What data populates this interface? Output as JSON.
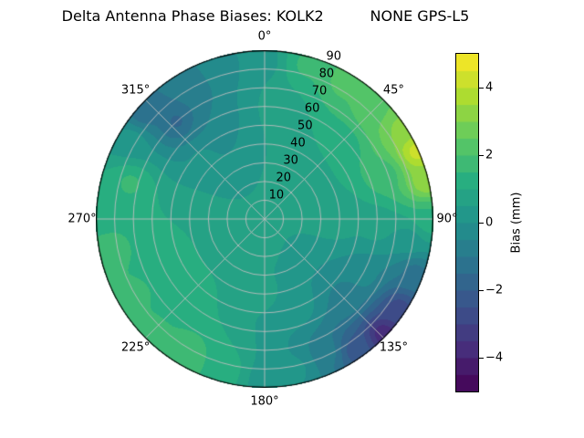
{
  "chart_data": {
    "type": "heatmap",
    "projection": "polar",
    "title": "Delta Antenna Phase Biases: KOLK2          NONE GPS-L5",
    "angular_ticks": [
      {
        "deg": 0,
        "label": "0°"
      },
      {
        "deg": 45,
        "label": "45°"
      },
      {
        "deg": 90,
        "label": "90°"
      },
      {
        "deg": 135,
        "label": "135°"
      },
      {
        "deg": 180,
        "label": "180°"
      },
      {
        "deg": 225,
        "label": "225°"
      },
      {
        "deg": 270,
        "label": "270°"
      },
      {
        "deg": 315,
        "label": "315°"
      }
    ],
    "radial_ticks": [
      {
        "value": 10,
        "label": "10"
      },
      {
        "value": 20,
        "label": "20"
      },
      {
        "value": 30,
        "label": "30"
      },
      {
        "value": 40,
        "label": "40"
      },
      {
        "value": 50,
        "label": "50"
      },
      {
        "value": 60,
        "label": "60"
      },
      {
        "value": 70,
        "label": "70"
      },
      {
        "value": 80,
        "label": "80"
      },
      {
        "value": 90,
        "label": "90"
      }
    ],
    "radial_max": 90,
    "radial_label_azimuth_deg": 22.5,
    "grid_color": "#bebebe",
    "colorbar": {
      "label": "Bias (mm)",
      "range": [
        -5,
        5
      ],
      "level_step": 0.5,
      "ticks": [
        {
          "value": -4,
          "label": "−4"
        },
        {
          "value": -2,
          "label": "−2"
        },
        {
          "value": 0,
          "label": "0"
        },
        {
          "value": 2,
          "label": "2"
        },
        {
          "value": 4,
          "label": "4"
        }
      ]
    },
    "colormap": {
      "name": "viridis",
      "stops": [
        "#440154",
        "#472d7b",
        "#3b528b",
        "#2c728e",
        "#21918c",
        "#28ae80",
        "#5ec962",
        "#addc30",
        "#fde725"
      ]
    },
    "samples": [
      {
        "az": 0,
        "zen": 84,
        "bias": 0.3
      },
      {
        "az": 10,
        "zen": 60,
        "bias": 0.8
      },
      {
        "az": 15,
        "zen": 85,
        "bias": 1.6
      },
      {
        "az": 30,
        "zen": 85,
        "bias": 2.2
      },
      {
        "az": 45,
        "zen": 83,
        "bias": 2.4
      },
      {
        "az": 57,
        "zen": 88,
        "bias": 3.2
      },
      {
        "az": 66,
        "zen": 89,
        "bias": 4.3
      },
      {
        "az": 77,
        "zen": 88,
        "bias": 3.4
      },
      {
        "az": 70,
        "zen": 68,
        "bias": 1.7
      },
      {
        "az": 45,
        "zen": 55,
        "bias": 1.0
      },
      {
        "az": 45,
        "zen": 25,
        "bias": 0.6
      },
      {
        "az": 90,
        "zen": 87,
        "bias": 1.4
      },
      {
        "az": 98,
        "zen": 78,
        "bias": 0.3
      },
      {
        "az": 95,
        "zen": 60,
        "bias": 0.6
      },
      {
        "az": 110,
        "zen": 85,
        "bias": -1.2
      },
      {
        "az": 124,
        "zen": 86,
        "bias": -2.8
      },
      {
        "az": 134,
        "zen": 88,
        "bias": -3.9
      },
      {
        "az": 145,
        "zen": 85,
        "bias": -2.3
      },
      {
        "az": 155,
        "zen": 78,
        "bias": -0.8
      },
      {
        "az": 135,
        "zen": 60,
        "bias": -0.6
      },
      {
        "az": 120,
        "zen": 62,
        "bias": -0.4
      },
      {
        "az": 160,
        "zen": 50,
        "bias": 0.3
      },
      {
        "az": 168,
        "zen": 82,
        "bias": 0.1
      },
      {
        "az": 180,
        "zen": 86,
        "bias": 0.3
      },
      {
        "az": 195,
        "zen": 83,
        "bias": 1.3
      },
      {
        "az": 210,
        "zen": 84,
        "bias": 1.9
      },
      {
        "az": 225,
        "zen": 86,
        "bias": 1.6
      },
      {
        "az": 225,
        "zen": 55,
        "bias": 1.2
      },
      {
        "az": 240,
        "zen": 80,
        "bias": 1.6
      },
      {
        "az": 250,
        "zen": 60,
        "bias": 1.3
      },
      {
        "az": 258,
        "zen": 83,
        "bias": 1.7
      },
      {
        "az": 272,
        "zen": 86,
        "bias": 1.4
      },
      {
        "az": 285,
        "zen": 74,
        "bias": 1.6
      },
      {
        "az": 300,
        "zen": 82,
        "bias": 0.3
      },
      {
        "az": 312,
        "zen": 86,
        "bias": -1.4
      },
      {
        "az": 318,
        "zen": 70,
        "bias": -1.6
      },
      {
        "az": 330,
        "zen": 80,
        "bias": -0.9
      },
      {
        "az": 332,
        "zen": 55,
        "bias": -0.5
      },
      {
        "az": 344,
        "zen": 84,
        "bias": -0.2
      },
      {
        "az": 315,
        "zen": 45,
        "bias": 0.1
      },
      {
        "az": 0,
        "zen": 45,
        "bias": 0.5
      },
      {
        "az": 90,
        "zen": 40,
        "bias": 0.7
      },
      {
        "az": 180,
        "zen": 40,
        "bias": 0.6
      },
      {
        "az": 270,
        "zen": 42,
        "bias": 1.0
      },
      {
        "az": 200,
        "zen": 18,
        "bias": 0.6
      }
    ]
  }
}
